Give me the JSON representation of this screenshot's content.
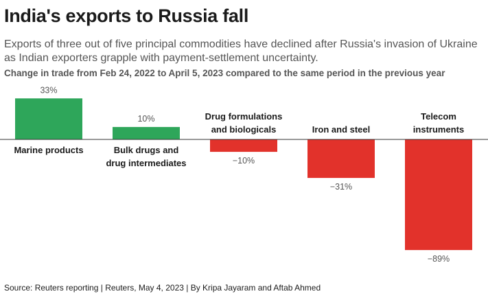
{
  "header": {
    "title": "India's exports to Russia fall",
    "subtitle": "Exports of three out of five principal commodities have declined after Russia's invasion of Ukraine as Indian exporters grapple with payment-settlement uncertainty.",
    "caption": "Change in trade from Feb 24, 2022 to April 5, 2023 compared to the same period in the previous year"
  },
  "footer": {
    "source": "Source: Reuters reporting | Reuters, May 4, 2023 | By Kripa Jayaram and Aftab Ahmed"
  },
  "chart_data": {
    "type": "bar",
    "categories": [
      [
        "Marine products"
      ],
      [
        "Bulk drugs and",
        "drug intermediates"
      ],
      [
        "Drug formulations",
        "and biologicals"
      ],
      [
        "Iron and steel"
      ],
      [
        "Telecom",
        "instruments"
      ]
    ],
    "values": [
      33,
      10,
      -10,
      -31,
      -89
    ],
    "value_labels": [
      "33%",
      "10%",
      "−10%",
      "−31%",
      "−89%"
    ],
    "unit": "%",
    "ylim": [
      -89,
      33
    ],
    "colors": {
      "positive": "#2ea65a",
      "negative": "#e2322b",
      "baseline": "#333333"
    },
    "grid": false,
    "legend": "none"
  }
}
